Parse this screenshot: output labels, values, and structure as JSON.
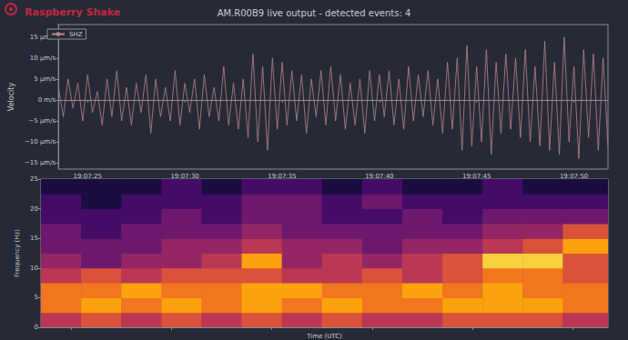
{
  "app_name": "Raspberry Shake",
  "chart_data": [
    {
      "type": "line",
      "title": "AM.R00B9 live output - detected events: 4",
      "y_label": "Velocity",
      "x": [
        68843.5,
        68843.75,
        68844,
        68844.25,
        68844.5,
        68844.75,
        68845,
        68845.25,
        68845.5,
        68845.75,
        68846,
        68846.25,
        68846.5,
        68846.75,
        68847,
        68847.25,
        68847.5,
        68847.75,
        68848,
        68848.25,
        68848.5,
        68848.75,
        68849,
        68849.25,
        68849.5,
        68849.75,
        68850,
        68850.25,
        68850.5,
        68850.75,
        68851,
        68851.25,
        68851.5,
        68851.75,
        68852,
        68852.25,
        68852.5,
        68852.75,
        68853,
        68853.25,
        68853.5,
        68853.75,
        68854,
        68854.25,
        68854.5,
        68854.75,
        68855,
        68855.25,
        68855.5,
        68855.75,
        68856,
        68856.25,
        68856.5,
        68856.75,
        68857,
        68857.25,
        68857.5,
        68857.75,
        68858,
        68858.25,
        68858.5,
        68858.75,
        68859,
        68859.25,
        68859.5,
        68859.75,
        68860,
        68860.25,
        68860.5,
        68860.75,
        68861,
        68861.25,
        68861.5,
        68861.75,
        68862,
        68862.25,
        68862.5,
        68862.75,
        68863,
        68863.25,
        68863.5,
        68863.75,
        68864,
        68864.25,
        68864.5,
        68864.75,
        68865,
        68865.25,
        68865.5,
        68865.75,
        68866,
        68866.25,
        68866.5,
        68866.75,
        68867,
        68867.25,
        68867.5,
        68867.75,
        68868,
        68868.25,
        68868.5,
        68868.75,
        68869,
        68869.25,
        68869.5,
        68869.75,
        68870,
        68870.25,
        68870.5,
        68870.75,
        68871,
        68871.25,
        68871.5,
        68871.75
      ],
      "series": [
        {
          "name": "SHZ",
          "color": "#b98488",
          "values": [
            3,
            -4,
            5,
            -2,
            4,
            -5,
            6,
            -3,
            2,
            -6,
            5,
            -4,
            7,
            -5,
            3,
            -6,
            4,
            -3,
            6,
            -8,
            5,
            -4,
            3,
            -5,
            7,
            -6,
            4,
            -3,
            5,
            -7,
            6,
            -4,
            3,
            -5,
            8,
            -6,
            4,
            -7,
            5,
            -9,
            11,
            -10,
            8,
            -12,
            10,
            -7,
            9,
            -6,
            7,
            -5,
            6,
            -8,
            5,
            -4,
            7,
            -6,
            8,
            -5,
            6,
            -7,
            4,
            -6,
            5,
            -8,
            7,
            -5,
            6,
            -4,
            7,
            -6,
            5,
            -7,
            8,
            -5,
            6,
            -4,
            7,
            -6,
            5,
            -8,
            9,
            -7,
            10,
            -12,
            13,
            -11,
            8,
            -10,
            12,
            -13,
            9,
            -8,
            11,
            -7,
            10,
            -9,
            12,
            -10,
            8,
            -11,
            14,
            -12,
            9,
            -13,
            15,
            -10,
            8,
            -14,
            12,
            -9,
            11,
            -12,
            10,
            -11
          ]
        }
      ],
      "xlim": [
        68843.5,
        68871.75
      ],
      "xticks": [
        {
          "value": 68845,
          "label": "19:07:25"
        },
        {
          "value": 68850,
          "label": "19:07:30"
        },
        {
          "value": 68855,
          "label": "19:07:35"
        },
        {
          "value": 68860,
          "label": "19:07:40"
        },
        {
          "value": 68865,
          "label": "19:07:45"
        },
        {
          "value": 68870,
          "label": "19:07:50"
        }
      ],
      "ylim": [
        -16.5,
        18
      ],
      "yticks": [
        {
          "value": -15,
          "label": "−15 µm/s"
        },
        {
          "value": -10,
          "label": "−10 µm/s"
        },
        {
          "value": -5,
          "label": "−5 µm/s"
        },
        {
          "value": 0,
          "label": "0 m/s"
        },
        {
          "value": 5,
          "label": "5 µm/s"
        },
        {
          "value": 10,
          "label": "10 µm/s"
        },
        {
          "value": 15,
          "label": "15 µm/s"
        }
      ],
      "grid": false,
      "legend": "upper left"
    },
    {
      "type": "heatmap",
      "x_label": "Time (UTC)",
      "y_label": "Frequency (Hz)",
      "x_edges": [
        68843.5,
        68845.5,
        68847.5,
        68849.5,
        68851.5,
        68853.5,
        68855.5,
        68857.5,
        68859.5,
        68861.5,
        68863.5,
        68865.5,
        68867.5,
        68869.5,
        68871.75
      ],
      "y_edges": [
        0,
        2.5,
        5,
        7.5,
        10,
        12.5,
        15,
        17.5,
        20,
        22.5,
        25
      ],
      "cells": [
        [
          5,
          6,
          5,
          6,
          5,
          6,
          5,
          6,
          5,
          5,
          6,
          6,
          6,
          5
        ],
        [
          7,
          8,
          7,
          8,
          7,
          8,
          7,
          8,
          7,
          7,
          8,
          8,
          8,
          7
        ],
        [
          7,
          7,
          8,
          7,
          7,
          8,
          8,
          7,
          7,
          8,
          7,
          8,
          7,
          7
        ],
        [
          5,
          6,
          5,
          6,
          6,
          6,
          5,
          5,
          6,
          5,
          6,
          7,
          7,
          6
        ],
        [
          4,
          3,
          4,
          4,
          5,
          8,
          4,
          5,
          4,
          5,
          6,
          9,
          9,
          6
        ],
        [
          3,
          3,
          3,
          4,
          4,
          5,
          4,
          4,
          3,
          4,
          4,
          5,
          6,
          8
        ],
        [
          3,
          2,
          3,
          3,
          3,
          4,
          3,
          3,
          3,
          3,
          3,
          4,
          4,
          6
        ],
        [
          2,
          2,
          2,
          3,
          2,
          3,
          3,
          2,
          2,
          3,
          2,
          3,
          3,
          3
        ],
        [
          2,
          1,
          2,
          2,
          2,
          3,
          3,
          2,
          3,
          2,
          2,
          2,
          2,
          2
        ],
        [
          1,
          1,
          1,
          2,
          1,
          2,
          2,
          1,
          2,
          1,
          1,
          2,
          1,
          1
        ]
      ],
      "xlim": [
        68843.5,
        68871.75
      ],
      "xticks": [
        68845,
        68850,
        68855,
        68860,
        68865,
        68870
      ],
      "ylim": [
        0,
        25
      ],
      "yticks": [
        0,
        5,
        10,
        15,
        20,
        25
      ],
      "grid": false,
      "tick_labels": "y"
    }
  ]
}
